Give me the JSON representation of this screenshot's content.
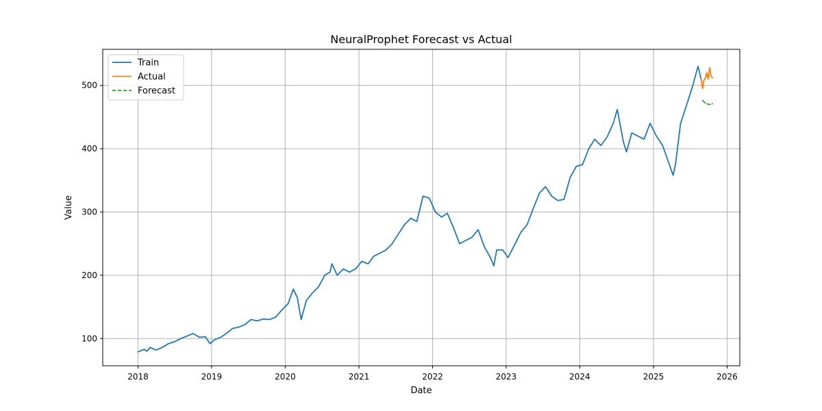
{
  "chart_data": {
    "type": "line",
    "title": "NeuralProphet Forecast vs Actual",
    "xlabel": "Date",
    "ylabel": "Value",
    "xlim": [
      "2017-07-10",
      "2026-03-05"
    ],
    "ylim": [
      57,
      557
    ],
    "x_ticks": [
      "2018-01-01",
      "2019-01-01",
      "2020-01-01",
      "2021-01-01",
      "2022-01-01",
      "2023-01-01",
      "2024-01-01",
      "2025-01-01",
      "2026-01-01"
    ],
    "x_tick_labels": [
      "2018",
      "2019",
      "2020",
      "2021",
      "2022",
      "2023",
      "2024",
      "2025",
      "2026"
    ],
    "y_ticks": [
      100,
      200,
      300,
      400,
      500
    ],
    "y_tick_labels": [
      "100",
      "200",
      "300",
      "400",
      "500"
    ],
    "grid": true,
    "legend_position": "top-left",
    "series": [
      {
        "name": "Train",
        "color": "#1f77b4",
        "style": "solid",
        "points": [
          [
            "2018-01-01",
            79
          ],
          [
            "2018-02-01",
            83
          ],
          [
            "2018-02-15",
            80
          ],
          [
            "2018-03-01",
            86
          ],
          [
            "2018-04-01",
            82
          ],
          [
            "2018-05-01",
            86
          ],
          [
            "2018-06-01",
            92
          ],
          [
            "2018-07-01",
            95
          ],
          [
            "2018-08-01",
            100
          ],
          [
            "2018-09-01",
            104
          ],
          [
            "2018-10-01",
            108
          ],
          [
            "2018-11-01",
            102
          ],
          [
            "2018-12-01",
            103
          ],
          [
            "2018-12-24",
            92
          ],
          [
            "2019-01-15",
            98
          ],
          [
            "2019-02-15",
            102
          ],
          [
            "2019-03-15",
            108
          ],
          [
            "2019-04-15",
            116
          ],
          [
            "2019-05-15",
            118
          ],
          [
            "2019-06-15",
            122
          ],
          [
            "2019-07-15",
            130
          ],
          [
            "2019-08-15",
            128
          ],
          [
            "2019-09-15",
            131
          ],
          [
            "2019-10-15",
            130
          ],
          [
            "2019-11-15",
            134
          ],
          [
            "2019-12-15",
            145
          ],
          [
            "2020-01-15",
            155
          ],
          [
            "2020-02-10",
            178
          ],
          [
            "2020-03-01",
            165
          ],
          [
            "2020-03-20",
            130
          ],
          [
            "2020-04-15",
            160
          ],
          [
            "2020-05-15",
            172
          ],
          [
            "2020-06-15",
            182
          ],
          [
            "2020-07-15",
            200
          ],
          [
            "2020-08-10",
            205
          ],
          [
            "2020-08-20",
            218
          ],
          [
            "2020-09-15",
            200
          ],
          [
            "2020-10-15",
            210
          ],
          [
            "2020-11-15",
            205
          ],
          [
            "2020-12-15",
            210
          ],
          [
            "2021-01-15",
            222
          ],
          [
            "2021-02-15",
            218
          ],
          [
            "2021-03-15",
            230
          ],
          [
            "2021-04-15",
            235
          ],
          [
            "2021-05-15",
            240
          ],
          [
            "2021-06-15",
            250
          ],
          [
            "2021-07-15",
            265
          ],
          [
            "2021-08-15",
            280
          ],
          [
            "2021-09-15",
            290
          ],
          [
            "2021-10-15",
            285
          ],
          [
            "2021-11-15",
            325
          ],
          [
            "2021-12-15",
            322
          ],
          [
            "2022-01-15",
            300
          ],
          [
            "2022-02-15",
            292
          ],
          [
            "2022-03-15",
            298
          ],
          [
            "2022-04-15",
            275
          ],
          [
            "2022-05-15",
            250
          ],
          [
            "2022-06-15",
            255
          ],
          [
            "2022-07-15",
            260
          ],
          [
            "2022-08-15",
            272
          ],
          [
            "2022-09-15",
            245
          ],
          [
            "2022-10-15",
            228
          ],
          [
            "2022-11-01",
            215
          ],
          [
            "2022-11-15",
            240
          ],
          [
            "2022-12-15",
            240
          ],
          [
            "2023-01-10",
            228
          ],
          [
            "2023-02-15",
            250
          ],
          [
            "2023-03-15",
            268
          ],
          [
            "2023-04-15",
            280
          ],
          [
            "2023-05-15",
            305
          ],
          [
            "2023-06-15",
            330
          ],
          [
            "2023-07-15",
            340
          ],
          [
            "2023-08-15",
            325
          ],
          [
            "2023-09-15",
            318
          ],
          [
            "2023-10-15",
            320
          ],
          [
            "2023-11-15",
            355
          ],
          [
            "2023-12-15",
            372
          ],
          [
            "2024-01-15",
            375
          ],
          [
            "2024-02-15",
            400
          ],
          [
            "2024-03-15",
            415
          ],
          [
            "2024-04-15",
            405
          ],
          [
            "2024-05-15",
            418
          ],
          [
            "2024-06-15",
            440
          ],
          [
            "2024-07-05",
            462
          ],
          [
            "2024-08-05",
            410
          ],
          [
            "2024-08-20",
            395
          ],
          [
            "2024-09-15",
            425
          ],
          [
            "2024-10-15",
            420
          ],
          [
            "2024-11-15",
            415
          ],
          [
            "2024-12-15",
            440
          ],
          [
            "2025-01-15",
            420
          ],
          [
            "2025-02-15",
            405
          ],
          [
            "2025-03-15",
            380
          ],
          [
            "2025-04-08",
            358
          ],
          [
            "2025-04-20",
            375
          ],
          [
            "2025-05-15",
            440
          ],
          [
            "2025-06-15",
            470
          ],
          [
            "2025-07-15",
            500
          ],
          [
            "2025-08-01",
            520
          ],
          [
            "2025-08-10",
            530
          ],
          [
            "2025-08-25",
            510
          ]
        ]
      },
      {
        "name": "Actual",
        "color": "#ff7f0e",
        "style": "solid",
        "points": [
          [
            "2025-08-25",
            510
          ],
          [
            "2025-09-01",
            495
          ],
          [
            "2025-09-08",
            508
          ],
          [
            "2025-09-15",
            512
          ],
          [
            "2025-09-22",
            520
          ],
          [
            "2025-09-29",
            510
          ],
          [
            "2025-10-06",
            528
          ],
          [
            "2025-10-13",
            515
          ],
          [
            "2025-10-20",
            512
          ]
        ]
      },
      {
        "name": "Forecast",
        "color": "#2ca02c",
        "style": "dashed",
        "points": [
          [
            "2025-09-01",
            476
          ],
          [
            "2025-09-15",
            472
          ],
          [
            "2025-10-01",
            470
          ],
          [
            "2025-10-15",
            470
          ],
          [
            "2025-10-20",
            471
          ]
        ]
      }
    ]
  }
}
